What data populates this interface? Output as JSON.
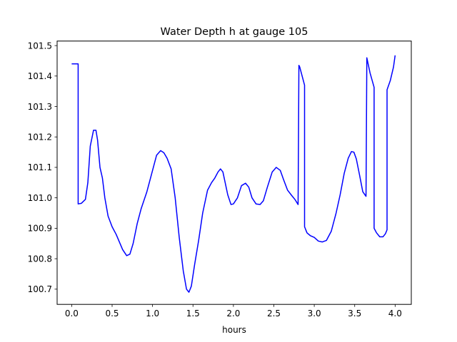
{
  "chart_data": {
    "type": "line",
    "title": "Water Depth h at gauge 105",
    "xlabel": "hours",
    "ylabel": "",
    "xlim": [
      -0.18,
      4.2
    ],
    "ylim": [
      100.65,
      101.515
    ],
    "xticks": [
      0.0,
      0.5,
      1.0,
      1.5,
      2.0,
      2.5,
      3.0,
      3.5,
      4.0
    ],
    "xtick_labels": [
      "0.0",
      "0.5",
      "1.0",
      "1.5",
      "2.0",
      "2.5",
      "3.0",
      "3.5",
      "4.0"
    ],
    "yticks": [
      100.7,
      100.8,
      100.9,
      101.0,
      101.1,
      101.2,
      101.3,
      101.4,
      101.5
    ],
    "ytick_labels": [
      "100.7",
      "100.8",
      "100.9",
      "101.0",
      "101.1",
      "101.2",
      "101.3",
      "101.4",
      "101.5"
    ],
    "grid": false,
    "legend": "none",
    "series": [
      {
        "color": "#0000ff",
        "x": [
          0.0,
          0.07,
          0.08,
          0.08,
          0.12,
          0.17,
          0.2,
          0.23,
          0.27,
          0.3,
          0.32,
          0.35,
          0.38,
          0.41,
          0.45,
          0.5,
          0.55,
          0.63,
          0.68,
          0.72,
          0.76,
          0.81,
          0.86,
          0.93,
          1.0,
          1.05,
          1.1,
          1.14,
          1.18,
          1.23,
          1.28,
          1.33,
          1.38,
          1.42,
          1.45,
          1.48,
          1.52,
          1.57,
          1.62,
          1.68,
          1.73,
          1.77,
          1.81,
          1.84,
          1.87,
          1.93,
          1.97,
          2.0,
          2.05,
          2.1,
          2.15,
          2.19,
          2.23,
          2.28,
          2.33,
          2.37,
          2.42,
          2.48,
          2.53,
          2.58,
          2.62,
          2.67,
          2.72,
          2.76,
          2.8,
          2.805,
          2.81,
          2.82,
          2.88,
          2.88,
          2.91,
          2.95,
          3.0,
          3.05,
          3.1,
          3.15,
          3.21,
          3.27,
          3.32,
          3.37,
          3.42,
          3.46,
          3.49,
          3.52,
          3.56,
          3.6,
          3.64,
          3.645,
          3.65,
          3.69,
          3.74,
          3.74,
          3.77,
          3.81,
          3.85,
          3.88,
          3.9,
          3.9,
          3.94,
          3.98,
          4.0
        ],
        "y": [
          101.44,
          101.44,
          101.44,
          100.98,
          100.982,
          100.995,
          101.05,
          101.17,
          101.222,
          101.222,
          101.19,
          101.1,
          101.065,
          101.0,
          100.94,
          100.905,
          100.88,
          100.83,
          100.81,
          100.815,
          100.85,
          100.915,
          100.965,
          101.02,
          101.09,
          101.14,
          101.155,
          101.148,
          101.13,
          101.095,
          101.0,
          100.87,
          100.76,
          100.7,
          100.69,
          100.71,
          100.78,
          100.86,
          100.95,
          101.025,
          101.05,
          101.065,
          101.085,
          101.095,
          101.085,
          101.01,
          100.978,
          100.98,
          101.0,
          101.04,
          101.048,
          101.035,
          101.0,
          100.98,
          100.978,
          100.99,
          101.035,
          101.085,
          101.1,
          101.09,
          101.06,
          101.025,
          101.008,
          100.995,
          100.978,
          101.2,
          101.435,
          101.43,
          101.37,
          100.905,
          100.885,
          100.876,
          100.87,
          100.858,
          100.855,
          100.86,
          100.89,
          100.95,
          101.01,
          101.08,
          101.13,
          101.152,
          101.15,
          101.128,
          101.075,
          101.02,
          101.005,
          101.23,
          101.46,
          101.41,
          101.363,
          100.9,
          100.885,
          100.872,
          100.872,
          100.882,
          100.895,
          101.355,
          101.385,
          101.43,
          101.468
        ]
      }
    ]
  }
}
